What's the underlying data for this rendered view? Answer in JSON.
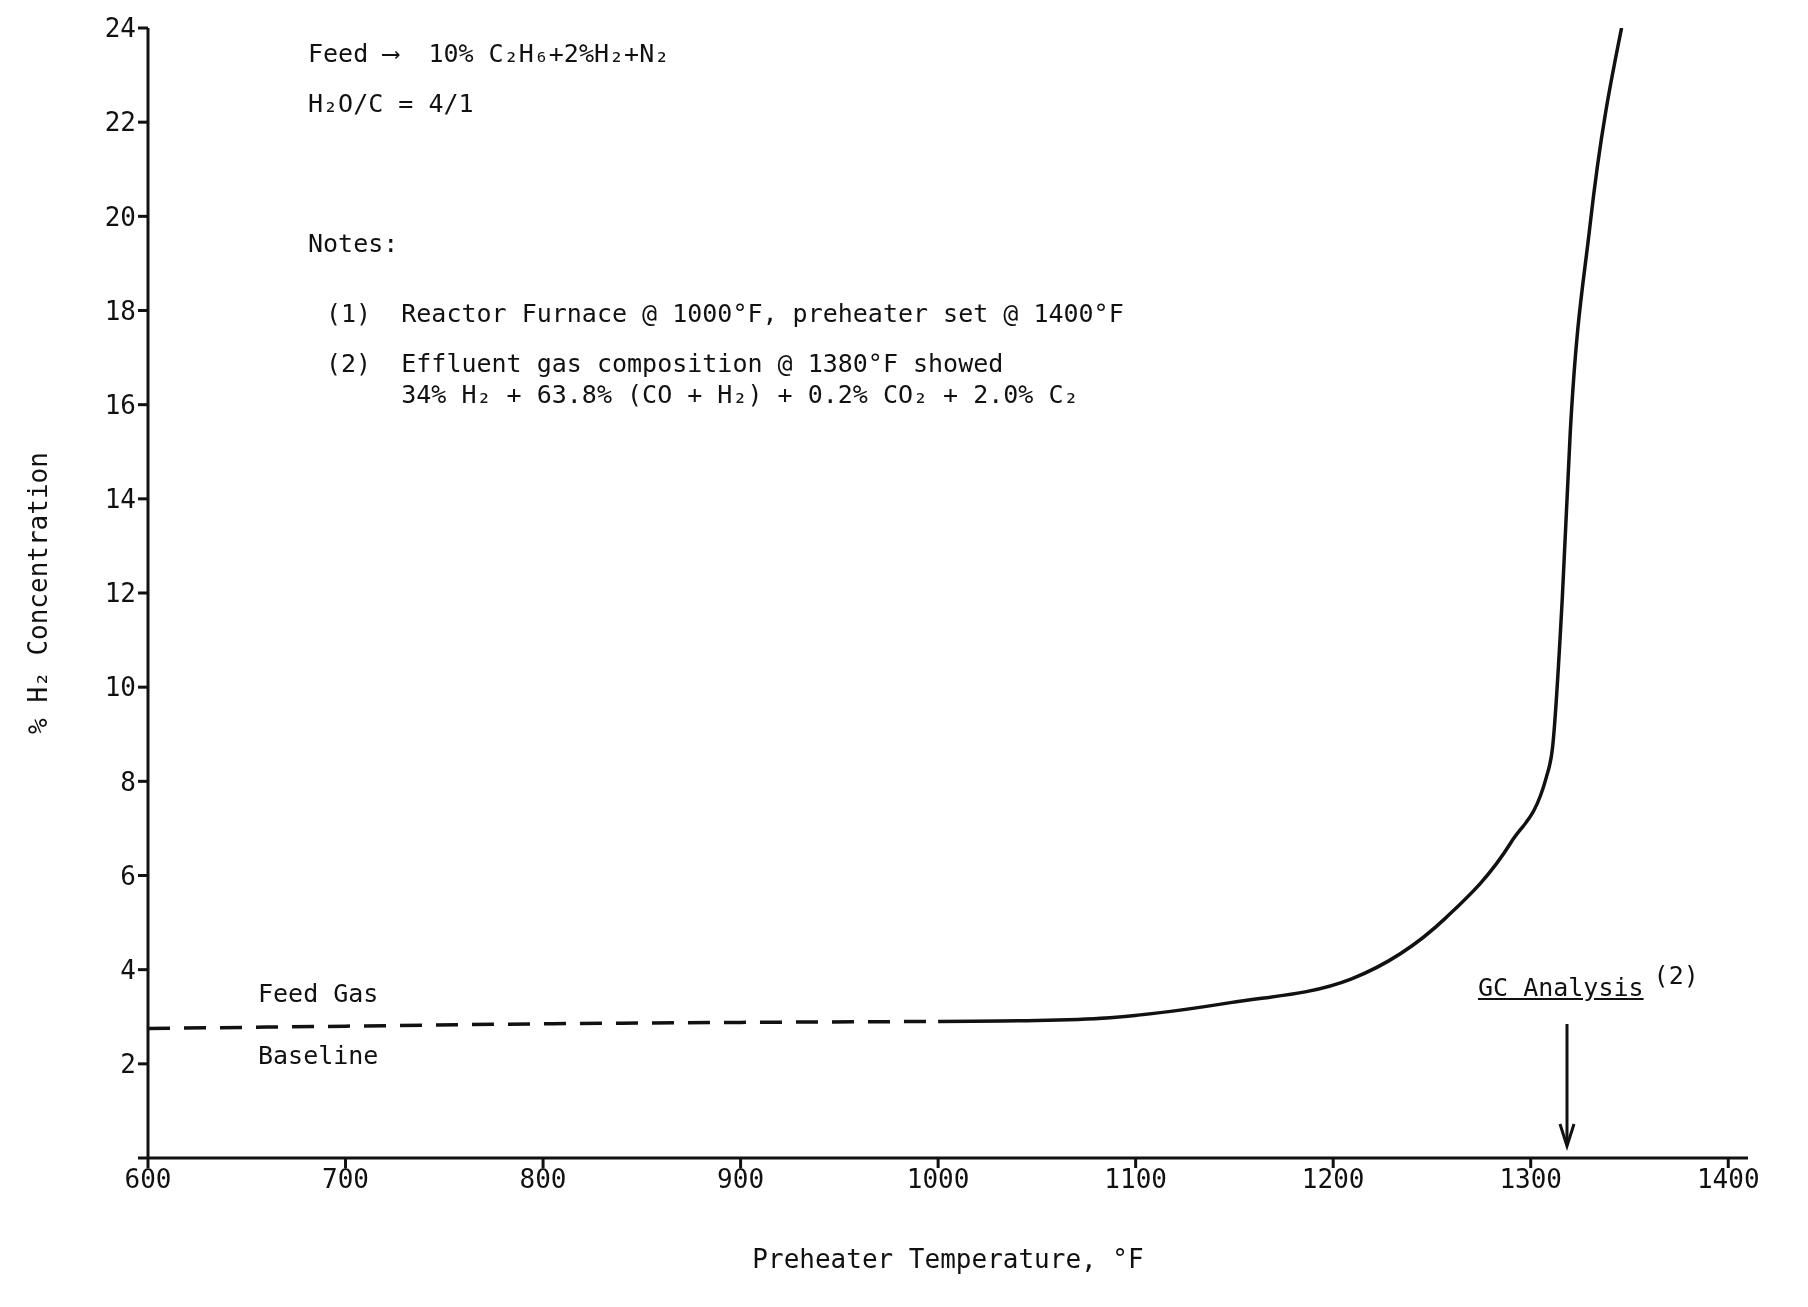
{
  "chart_data": {
    "type": "line",
    "xlabel": "Preheater Temperature, °F",
    "ylabel": "% H₂ Concentration",
    "xlim": [
      600,
      1410
    ],
    "ylim": [
      0,
      24
    ],
    "xticks": [
      600,
      700,
      800,
      900,
      1000,
      1100,
      1200,
      1300,
      1400
    ],
    "yticks": [
      {
        "value": 0,
        "label": null
      },
      2,
      4,
      6,
      8,
      10,
      12,
      14,
      16,
      18,
      20,
      22,
      24
    ],
    "marker": "none",
    "series": [
      {
        "color": "#111111",
        "line_style": "dashed",
        "x": [
          600,
          700,
          800,
          900,
          1000
        ],
        "values": [
          2.75,
          2.8,
          2.85,
          2.88,
          2.9
        ]
      },
      {
        "color": "#111111",
        "line_style": "solid",
        "x": [
          1000,
          1050,
          1087,
          1148,
          1209,
          1257,
          1290,
          1308,
          1311,
          1316,
          1320,
          1330,
          1346
        ],
        "values": [
          2.9,
          2.92,
          2.98,
          3.3,
          3.8,
          5.1,
          6.7,
          8.1,
          8.7,
          11.9,
          15.4,
          19.8,
          24
        ]
      }
    ],
    "annotations": [
      "Feed ⟶  10% C₂H₆+2%H₂+N₂",
      "H₂O/C = 4/1",
      "Notes:",
      "(1)  Reactor Furnace @ 1000°F, preheater set @ 1400°F",
      "(2)  Effluent gas composition @ 1380°F showed\n     34% H₂ + 63.8% (CO + H₂) + 0.2% CO₂ + 2.0% C₂",
      "Feed Gas Baseline",
      "GC Analysis (2)"
    ]
  }
}
